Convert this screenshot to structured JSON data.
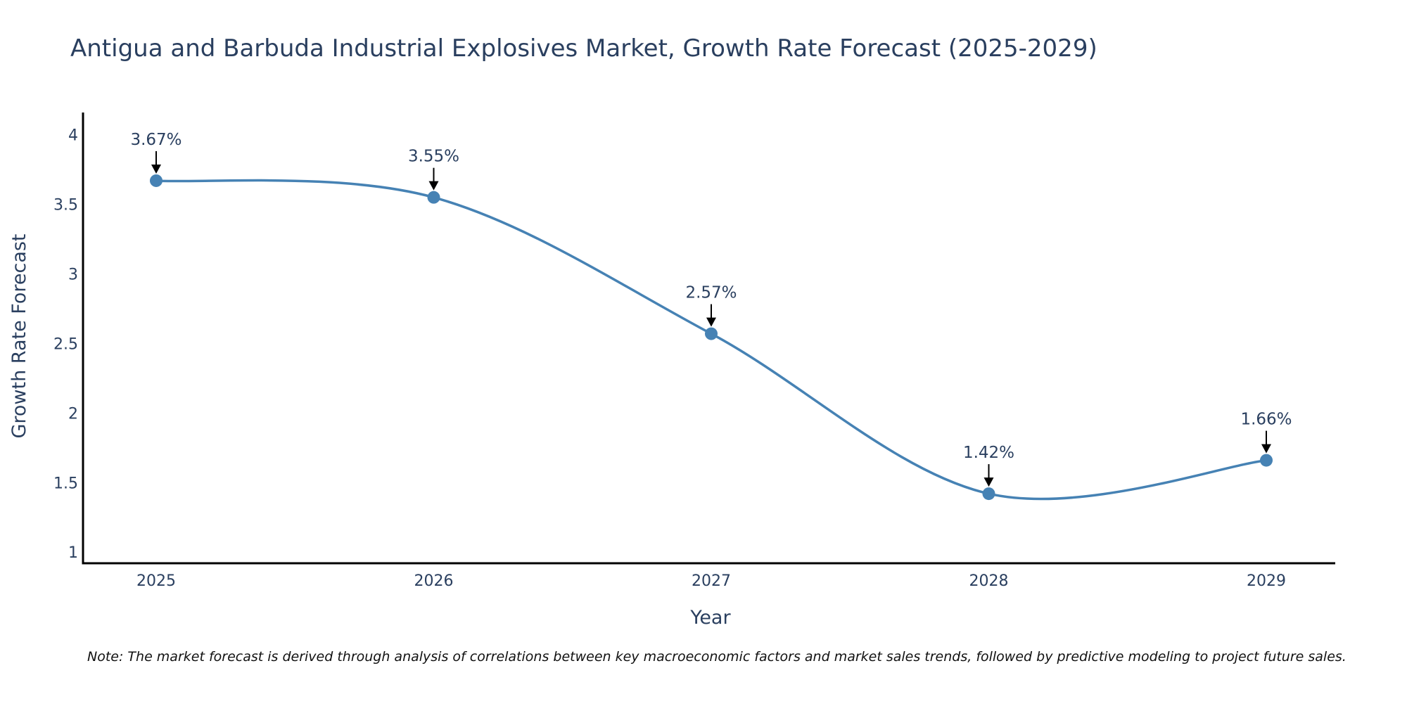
{
  "chart_data": {
    "type": "line",
    "title": "Antigua and Barbuda Industrial Explosives Market, Growth Rate Forecast (2025-2029)",
    "xlabel": "Year",
    "ylabel": "Growth Rate Forecast",
    "categories": [
      "2025",
      "2026",
      "2027",
      "2028",
      "2029"
    ],
    "series": [
      {
        "name": "Growth Rate Forecast",
        "values": [
          3.67,
          3.55,
          2.57,
          1.42,
          1.66
        ],
        "labels": [
          "3.67%",
          "3.55%",
          "2.57%",
          "1.42%",
          "1.66%"
        ]
      }
    ],
    "yticks": [
      "1",
      "1.5",
      "2",
      "2.5",
      "3",
      "3.5",
      "4"
    ],
    "ytick_values": [
      1,
      1.5,
      2,
      2.5,
      3,
      3.5,
      4
    ],
    "ylim": [
      0.92,
      4.16
    ],
    "line_shape": "spline",
    "grid": false,
    "legend": "none",
    "colors": {
      "line": "#4682b4",
      "marker": "#4682b4",
      "arrow": "#000000",
      "axis": "#000000",
      "text": "#2a3f5f"
    },
    "note": "Note: The market forecast is derived through analysis of correlations between key macroeconomic factors and market sales trends, followed by predictive modeling to project future sales."
  }
}
